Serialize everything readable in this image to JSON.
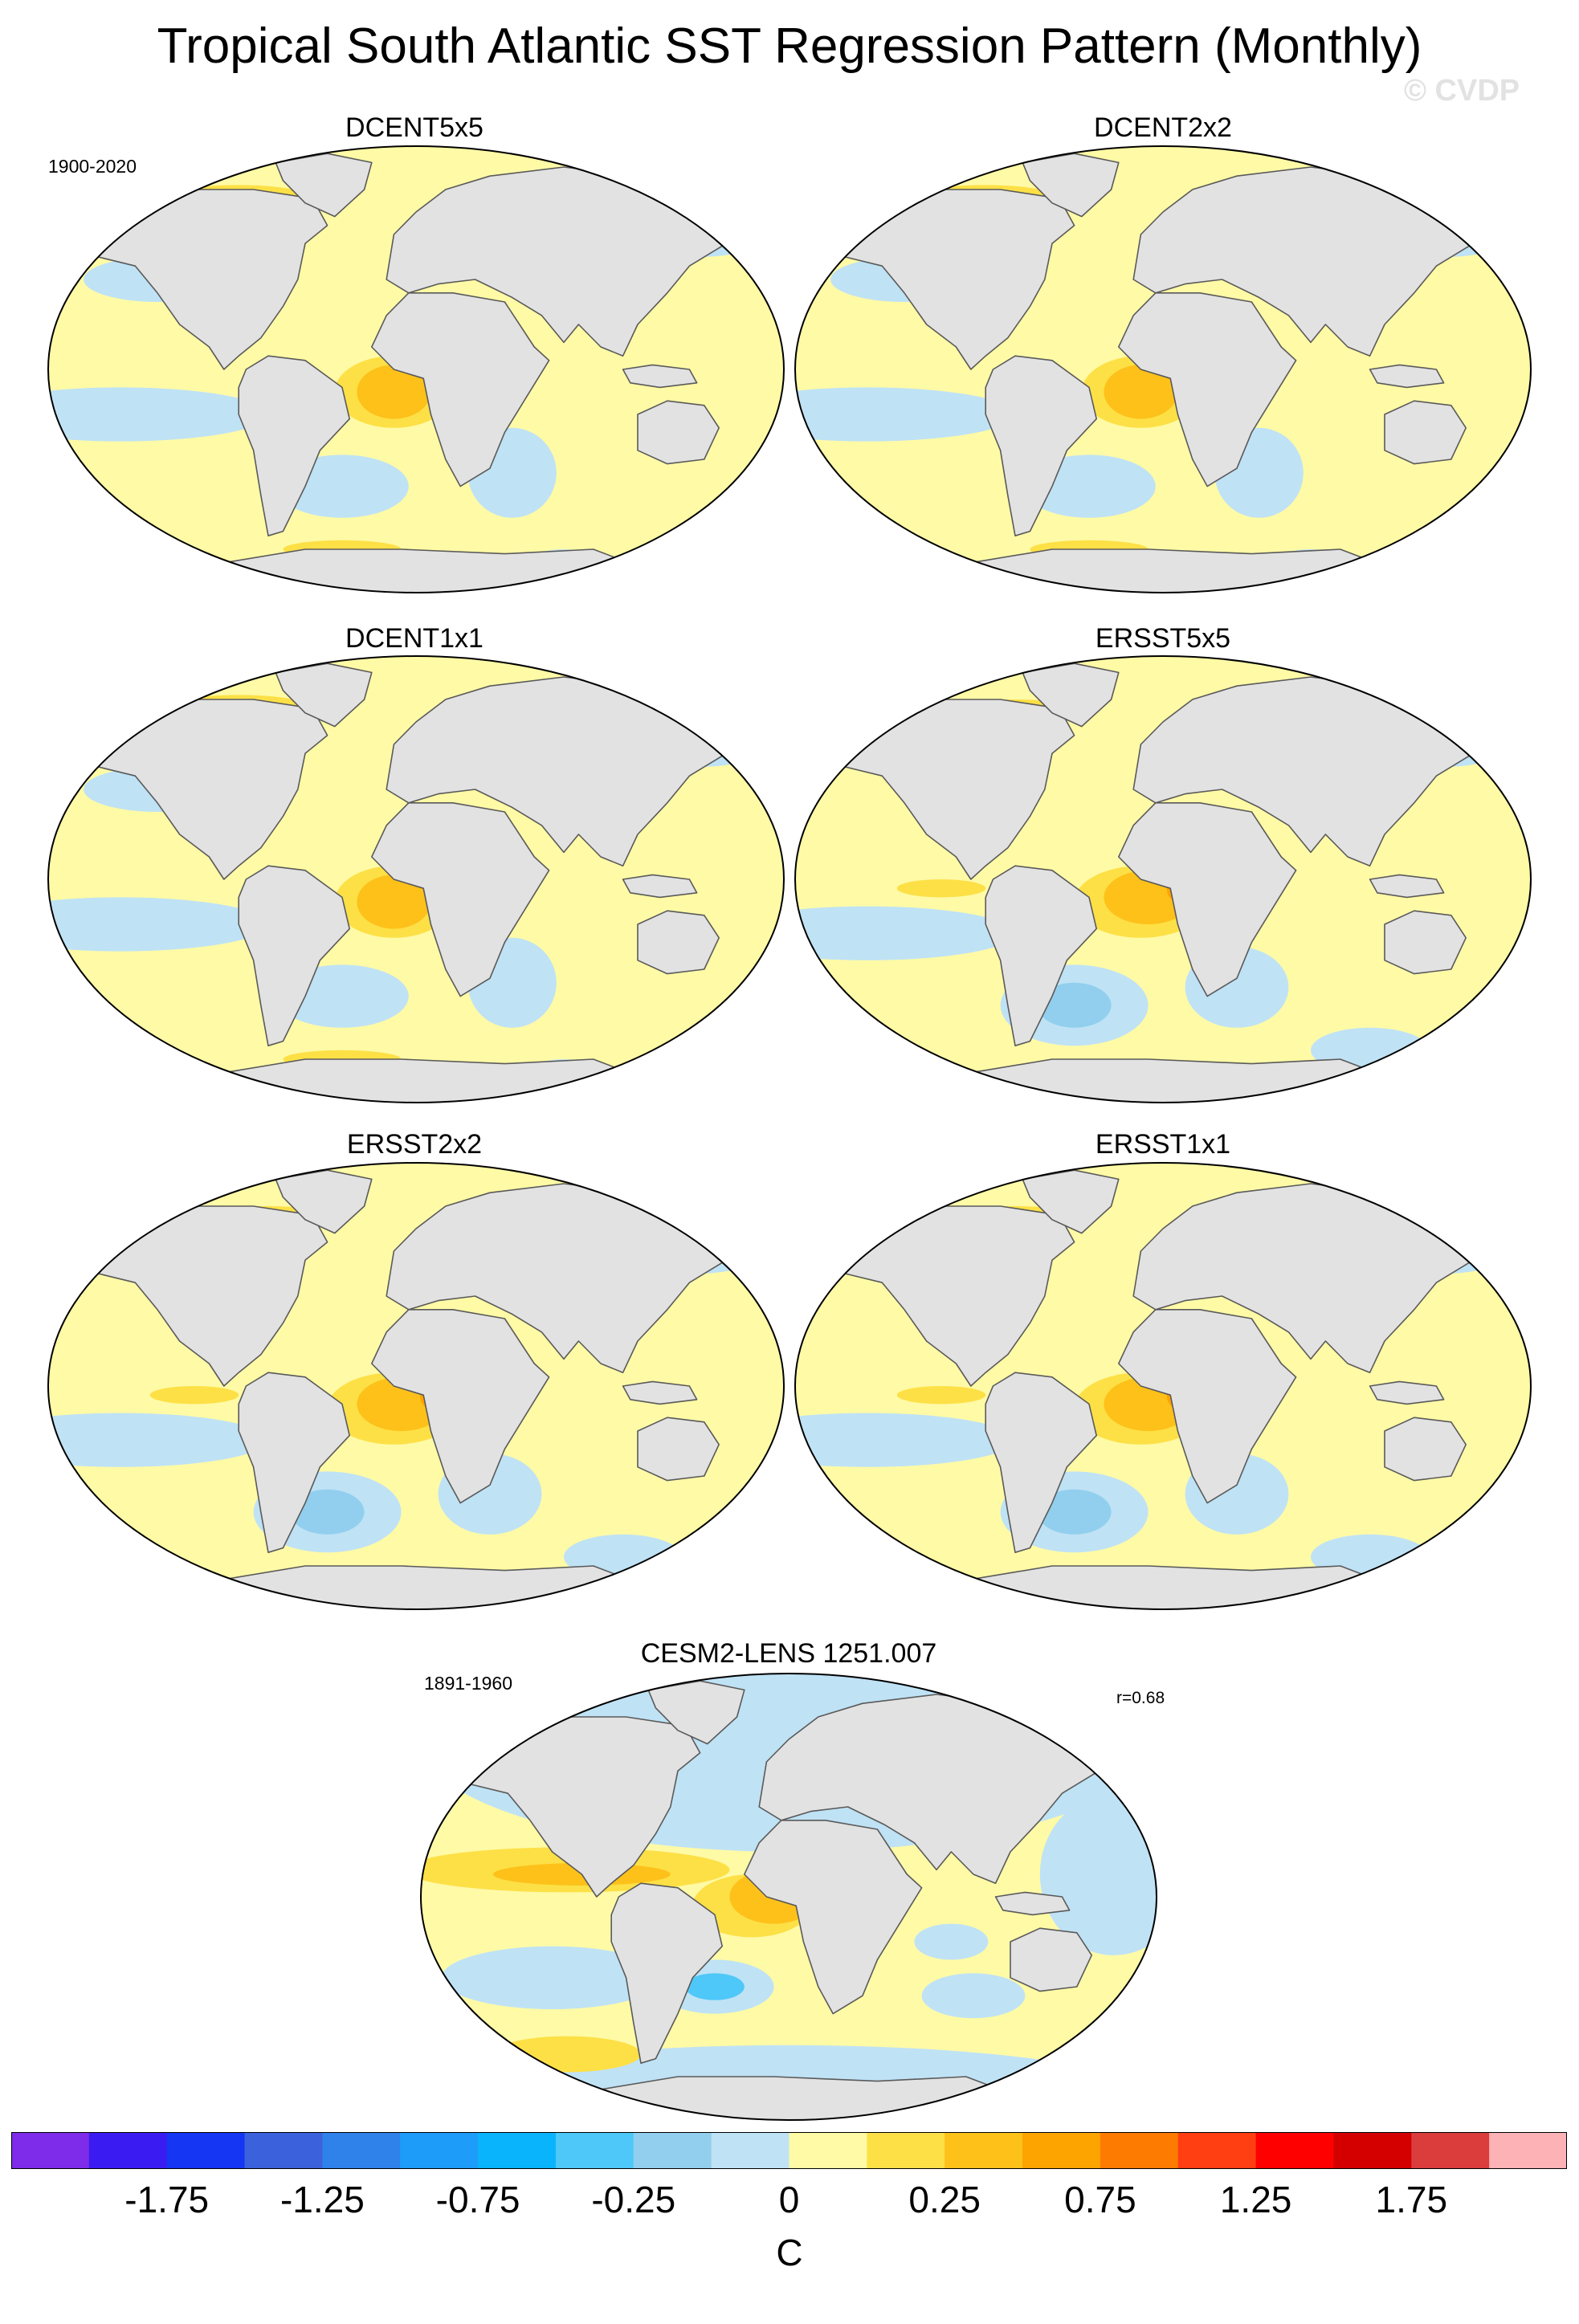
{
  "title": "Tropical South Atlantic SST Regression Pattern (Monthly)",
  "watermark": "© CVDP",
  "period_observations": "1900-2020",
  "period_model": "1891-1960",
  "model_correlation": "r=0.68",
  "panels": [
    {
      "name": "DCENT5x5"
    },
    {
      "name": "DCENT2x2"
    },
    {
      "name": "DCENT1x1"
    },
    {
      "name": "ERSST5x5"
    },
    {
      "name": "ERSST2x2"
    },
    {
      "name": "ERSST1x1"
    },
    {
      "name": "CESM2-LENS 1251.007"
    }
  ],
  "colorbar": {
    "units": "C",
    "colors": [
      "#7f2bea",
      "#3a1cf2",
      "#1536f2",
      "#3b62dc",
      "#2f82ea",
      "#1e9cfa",
      "#0ab4fc",
      "#4ec8f8",
      "#92cfee",
      "#bfe2f5",
      "#fffaa6",
      "#fde046",
      "#fdc11a",
      "#fda401",
      "#fe7b01",
      "#ff3e12",
      "#ff0001",
      "#d40000",
      "#db3d3d",
      "#fdb3b6"
    ],
    "tick_labels": [
      "-1.75",
      "-1.25",
      "-0.75",
      "-0.25",
      "0",
      "0.25",
      "0.75",
      "1.25",
      "1.75"
    ]
  }
}
